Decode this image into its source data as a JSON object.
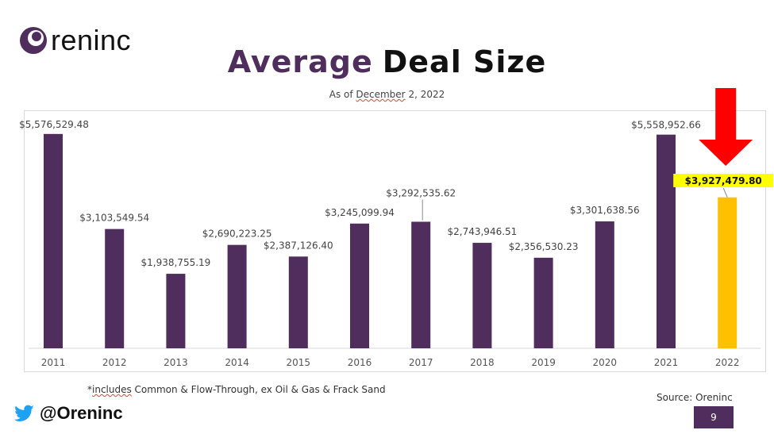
{
  "brand": {
    "name": "reninc",
    "accent": "#4f2d5c"
  },
  "header": {
    "title_part1": "Average",
    "title_part2": "Deal Size",
    "subtitle_prefix": "As of ",
    "subtitle_date": "December",
    "subtitle_suffix": " 2, 2022"
  },
  "chart_data": {
    "type": "bar",
    "categories": [
      "2011",
      "2012",
      "2013",
      "2014",
      "2015",
      "2016",
      "2017",
      "2018",
      "2019",
      "2020",
      "2021",
      "2022"
    ],
    "values": [
      5576529.48,
      3103549.54,
      1938755.19,
      2690223.25,
      2387126.4,
      3245099.94,
      3292535.62,
      2743946.51,
      2356530.23,
      3301638.56,
      5558952.66,
      3927479.8
    ],
    "labels": [
      "$5,576,529.48",
      "$3,103,549.54",
      "$1,938,755.19",
      "$2,690,223.25",
      "$2,387,126.40",
      "$3,245,099.94",
      "$3,292,535.62",
      "$2,743,946.51",
      "$2,356,530.23",
      "$3,301,638.56",
      "$5,558,952.66",
      "$3,927,479.80"
    ],
    "bar_color": "#4f2d5c",
    "highlight_color": "#ffc000",
    "highlight_index": 11,
    "label_highlight_color": "#ffff00",
    "arrow_color": "#ff0000",
    "ylim": [
      0,
      5800000
    ],
    "grid": false
  },
  "footer": {
    "footnote_prefix": "*",
    "footnote_underlined": "includes",
    "footnote_rest": " Common & Flow-Through, ex Oil & Gas & Frack Sand",
    "source": "Source: Oreninc",
    "twitter_handle": "@Oreninc",
    "page_number": "9"
  }
}
